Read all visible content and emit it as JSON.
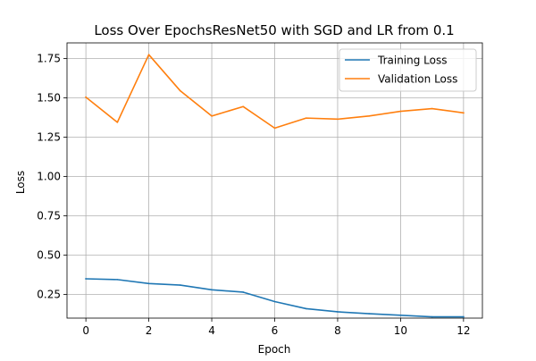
{
  "chart_data": {
    "type": "line",
    "title": "Loss Over EpochsResNet50 with SGD and LR from 0.1",
    "xlabel": "Epoch",
    "ylabel": "Loss",
    "x": [
      0,
      1,
      2,
      3,
      4,
      5,
      6,
      7,
      8,
      9,
      10,
      11,
      12
    ],
    "xlim": [
      -0.6,
      12.6
    ],
    "ylim": [
      0.1,
      1.85
    ],
    "xticks": [
      0,
      2,
      4,
      6,
      8,
      10,
      12
    ],
    "xtick_labels": [
      "0",
      "2",
      "4",
      "6",
      "8",
      "10",
      "12"
    ],
    "yticks": [
      0.25,
      0.5,
      0.75,
      1.0,
      1.25,
      1.5,
      1.75
    ],
    "ytick_labels": [
      "0.25",
      "0.50",
      "0.75",
      "1.00",
      "1.25",
      "1.50",
      "1.75"
    ],
    "grid": true,
    "legend_position": "top-right",
    "series": [
      {
        "name": "Training Loss",
        "color": "#1f77b4",
        "values": [
          0.35,
          0.345,
          0.32,
          0.31,
          0.28,
          0.265,
          0.205,
          0.16,
          0.14,
          0.128,
          0.118,
          0.108,
          0.108
        ]
      },
      {
        "name": "Validation Loss",
        "color": "#ff7f0e",
        "values": [
          1.505,
          1.345,
          1.775,
          1.545,
          1.385,
          1.445,
          1.308,
          1.372,
          1.365,
          1.385,
          1.415,
          1.432,
          1.405
        ]
      }
    ]
  }
}
